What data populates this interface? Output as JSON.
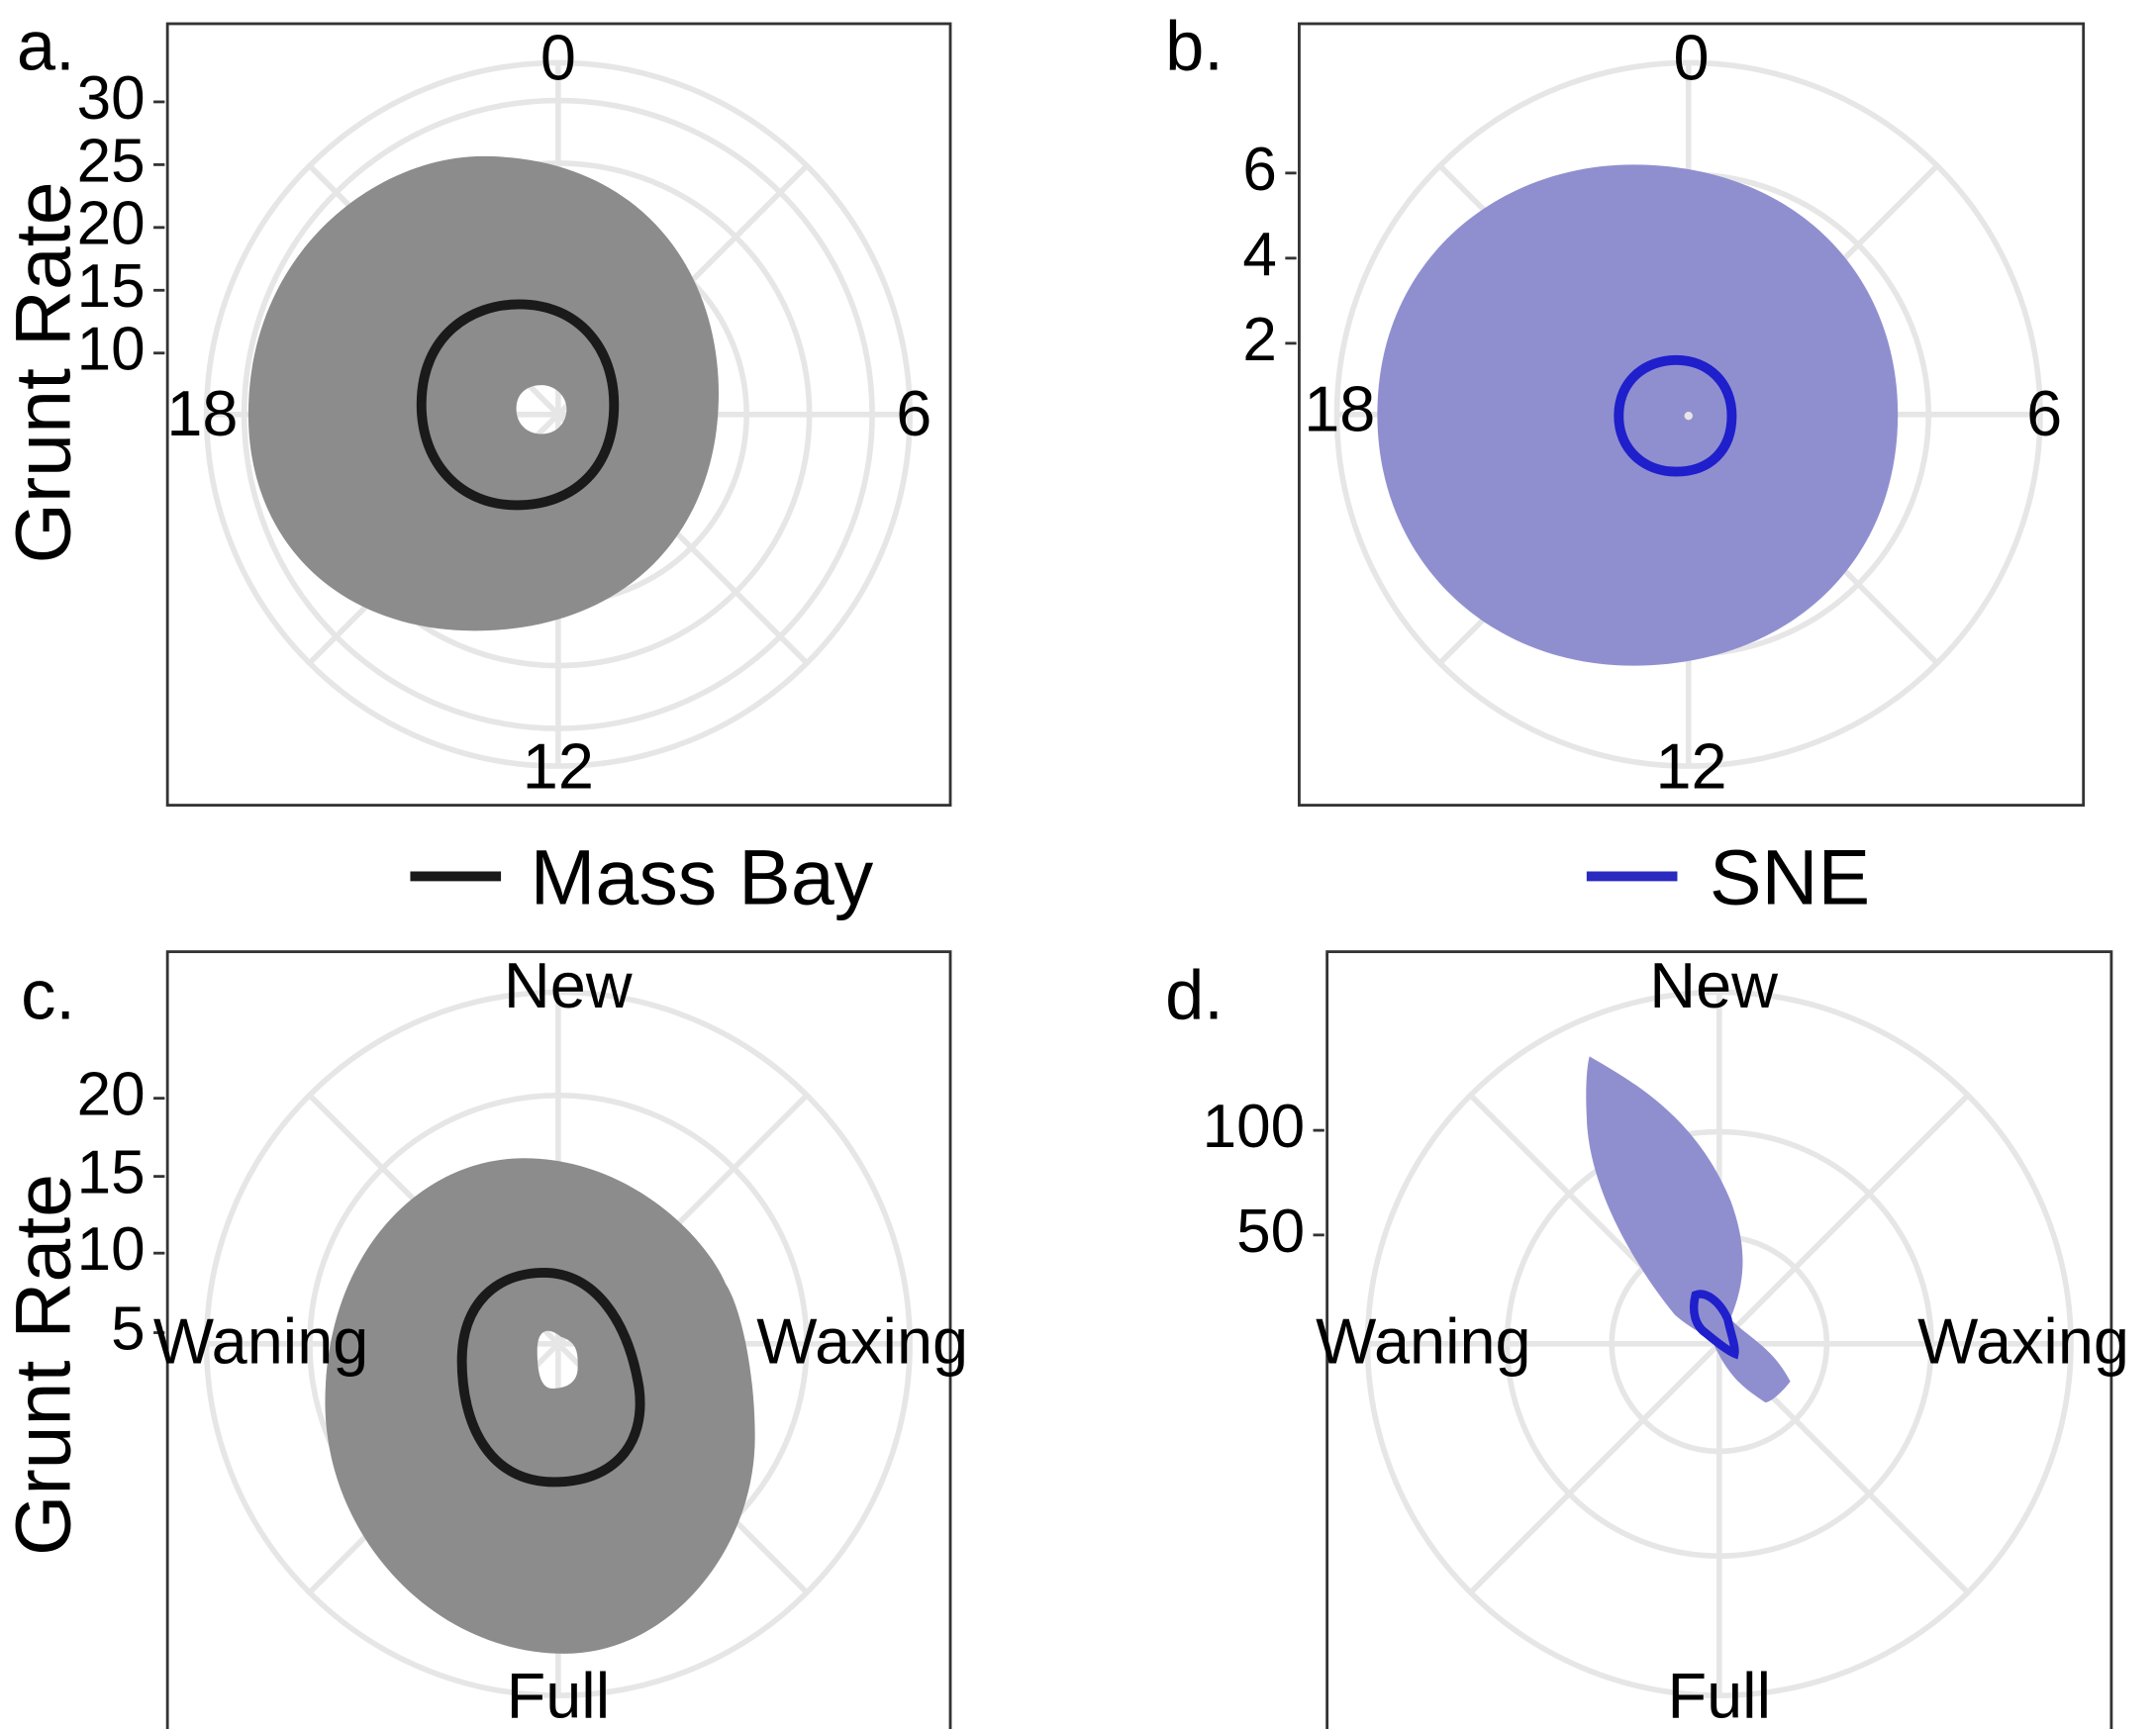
{
  "colors": {
    "mass_bay_line": "#1a1a1a",
    "mass_bay_fill": "#8c8c8c",
    "sne_line": "#1f1fcc",
    "sne_fill": "#8f8fd0",
    "grid": "#e6e6e6",
    "frame": "#333333"
  },
  "legend": {
    "mass_bay": "Mass Bay",
    "sne": "SNE"
  },
  "chart_data": [
    {
      "panel": "a.",
      "type": "polar",
      "ylabel": "Grunt Rate",
      "direction_labels": [
        "0",
        "6",
        "12",
        "18"
      ],
      "radial_ticks": [
        10,
        15,
        20,
        25,
        30
      ],
      "radial_range": [
        0,
        31
      ],
      "grid": true,
      "series": [
        {
          "name": "Mass Bay",
          "theta": [
            0,
            6,
            12,
            18
          ],
          "upper": [
            21,
            15,
            18,
            25
          ],
          "center": [
            9,
            8,
            7,
            11
          ],
          "lower": [
            2,
            2,
            2,
            2
          ]
        }
      ]
    },
    {
      "panel": "b.",
      "type": "polar",
      "ylabel": "",
      "direction_labels": [
        "0",
        "6",
        "12",
        "18"
      ],
      "radial_ticks": [
        2,
        4,
        6
      ],
      "radial_range": [
        0,
        7.5
      ],
      "grid": true,
      "series": [
        {
          "name": "SNE",
          "theta": [
            0,
            6,
            12,
            18
          ],
          "upper": [
            5.9,
            4.7,
            5.9,
            7.2
          ],
          "center": [
            1.3,
            1.1,
            1.3,
            1.5
          ],
          "lower": [
            0.1,
            0.1,
            0.1,
            0.1
          ]
        }
      ]
    },
    {
      "panel": "c.",
      "type": "polar",
      "ylabel": "Grunt Rate",
      "direction_labels": [
        "New",
        "Waxing",
        "Full",
        "Waning"
      ],
      "radial_ticks": [
        5,
        10,
        15,
        20
      ],
      "radial_range": [
        0,
        23
      ],
      "grid": true,
      "series": [
        {
          "name": "Mass Bay",
          "theta": [
            "New",
            "Waxing",
            "Full",
            "Waning"
          ],
          "upper": [
            11,
            10,
            17,
            12
          ],
          "center": [
            4.5,
            5.5,
            7.5,
            5.5
          ],
          "lower": [
            1,
            1.5,
            2,
            1
          ]
        }
      ]
    },
    {
      "panel": "d.",
      "type": "polar",
      "ylabel": "",
      "direction_labels": [
        "New",
        "Waxing",
        "Full",
        "Waning"
      ],
      "radial_ticks": [
        50,
        100
      ],
      "radial_range": [
        0,
        150
      ],
      "grid": true,
      "series": [
        {
          "name": "SNE",
          "peak_direction": "New-Waning",
          "peak_value": 145,
          "center_peak": 30
        }
      ]
    }
  ]
}
